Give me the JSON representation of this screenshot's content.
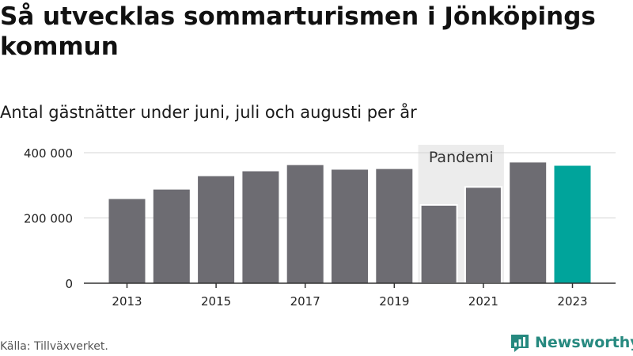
{
  "title": "Så utvecklas sommarturismen i Jönköpings kommun",
  "subtitle": "Antal gästnätter under juni, juli och augusti per år",
  "source": "Källa: Tillväxverket.",
  "brand": "Newsworthy",
  "colors": {
    "bar": "#6d6c72",
    "highlight": "#00a49b",
    "band": "#ececec",
    "grid": "#d4d4d4",
    "axis": "#333333",
    "brand": "#26897f"
  },
  "chart_data": {
    "type": "bar",
    "categories": [
      "2013",
      "2014",
      "2015",
      "2016",
      "2017",
      "2018",
      "2019",
      "2020",
      "2021",
      "2022",
      "2023"
    ],
    "values": [
      258000,
      287000,
      328000,
      343000,
      362000,
      348000,
      350000,
      240000,
      295000,
      370000,
      360000
    ],
    "highlight_category": "2023",
    "xtick_labels": [
      "2013",
      "2015",
      "2017",
      "2019",
      "2021",
      "2023"
    ],
    "yticks": [
      0,
      200000,
      400000
    ],
    "ytick_labels": [
      "0",
      "200 000",
      "400 000"
    ],
    "ylim": [
      0,
      400000
    ],
    "annotation": {
      "label": "Pandemi",
      "categories": [
        "2020",
        "2021"
      ]
    },
    "grid": true,
    "title": "Så utvecklas sommarturismen i Jönköpings kommun",
    "subtitle": "Antal gästnätter under juni, juli och augusti per år",
    "xlabel": "",
    "ylabel": ""
  }
}
